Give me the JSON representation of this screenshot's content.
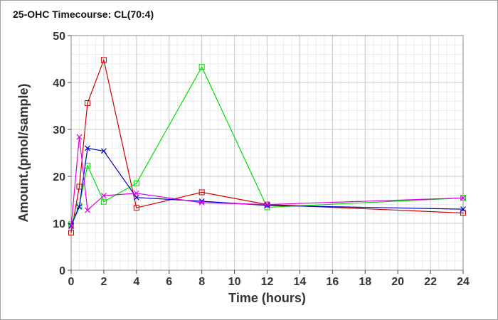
{
  "chart_data": {
    "type": "line",
    "title": "25-OHC Timecourse: CL(70:4)",
    "xlabel": "Time (hours)",
    "ylabel": "Amount.(pmol/sample)",
    "xlim": [
      0,
      24
    ],
    "ylim": [
      0,
      50
    ],
    "x_ticks": [
      0,
      2,
      4,
      6,
      8,
      10,
      12,
      14,
      16,
      18,
      20,
      22,
      24
    ],
    "y_ticks": [
      0,
      10,
      20,
      30,
      40,
      50
    ],
    "grid": true,
    "legend": "none",
    "series": [
      {
        "color": "#cc0000",
        "marker": "square",
        "x": [
          0,
          0.5,
          1,
          2,
          4,
          8,
          12,
          24
        ],
        "values": [
          8.0,
          17.8,
          35.6,
          44.8,
          13.3,
          16.6,
          14.0,
          12.2
        ]
      },
      {
        "color": "#00dd00",
        "marker": "square",
        "x": [
          0,
          0.5,
          1,
          2,
          4,
          8,
          12,
          24
        ],
        "values": [
          9.8,
          13.8,
          22.3,
          14.6,
          18.5,
          43.3,
          13.4,
          15.4
        ]
      },
      {
        "color": "#0000cc",
        "marker": "x",
        "x": [
          0,
          0.5,
          1,
          2,
          4,
          8,
          12,
          24
        ],
        "values": [
          9.5,
          13.5,
          26.0,
          25.4,
          15.5,
          14.7,
          13.8,
          13.0
        ]
      },
      {
        "color": "#dd00dd",
        "marker": "x",
        "x": [
          0,
          0.5,
          1,
          2,
          4,
          8,
          12,
          24
        ],
        "values": [
          9.3,
          28.4,
          12.8,
          15.9,
          16.4,
          14.4,
          14.0,
          15.4
        ]
      }
    ]
  }
}
